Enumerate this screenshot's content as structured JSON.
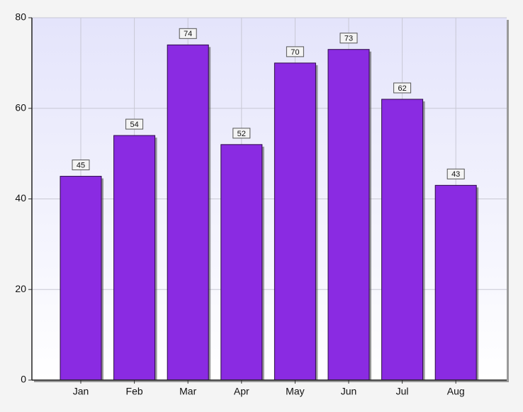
{
  "chart_data": {
    "type": "bar",
    "categories": [
      "Jan",
      "Feb",
      "Mar",
      "Apr",
      "May",
      "Jun",
      "Jul",
      "Aug"
    ],
    "values": [
      45,
      54,
      74,
      52,
      70,
      73,
      62,
      43
    ],
    "color": "#8a2be2",
    "ylim": [
      0,
      80
    ],
    "yticks": [
      0,
      20,
      40,
      60,
      80
    ],
    "grid": true
  }
}
